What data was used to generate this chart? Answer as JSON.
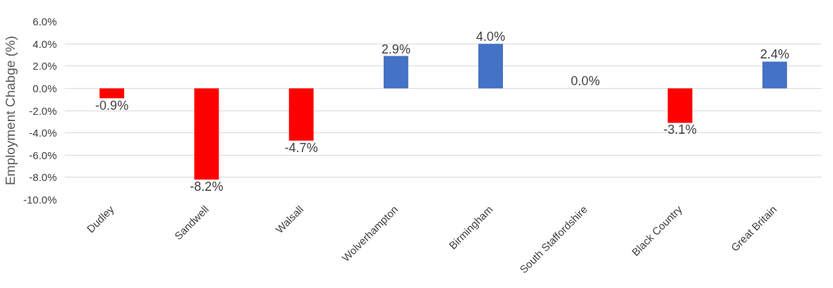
{
  "chart_data": {
    "type": "bar",
    "ylabel": "Employment Chabge (%)",
    "categories": [
      "Dudley",
      "Sandwell",
      "Walsall",
      "Wolverhampton",
      "Birmingham",
      "South Staffordshire",
      "Black Country",
      "Great Britain"
    ],
    "values": [
      -0.9,
      -8.2,
      -4.7,
      2.9,
      4.0,
      0.0,
      -3.1,
      2.4
    ],
    "colors": [
      "#ff0000",
      "#ff0000",
      "#ff0000",
      "#4472c4",
      "#4472c4",
      "#4472c4",
      "#ff0000",
      "#4472c4"
    ],
    "value_labels": [
      "-0.9%",
      "-8.2%",
      "-4.7%",
      "2.9%",
      "4.0%",
      "0.0%",
      "-3.1%",
      "2.4%"
    ],
    "ylim": [
      -10,
      6
    ],
    "yticks": [
      {
        "value": -10,
        "label": "-10.0%"
      },
      {
        "value": -8,
        "label": "-8.0%"
      },
      {
        "value": -6,
        "label": "-6.0%"
      },
      {
        "value": -4,
        "label": "-4.0%"
      },
      {
        "value": -2,
        "label": "-2.0%"
      },
      {
        "value": 0,
        "label": "0.0%"
      },
      {
        "value": 2,
        "label": "2.0%"
      },
      {
        "value": 4,
        "label": "4.0%"
      },
      {
        "value": 6,
        "label": "6.0%"
      }
    ],
    "grid": "y"
  }
}
